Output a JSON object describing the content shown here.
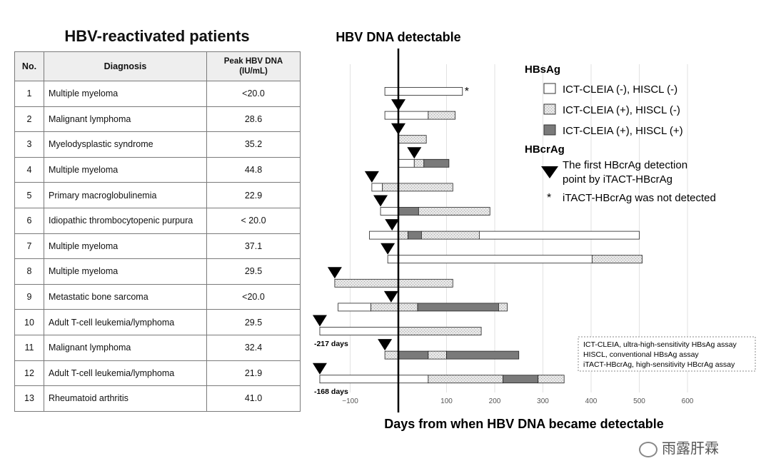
{
  "table": {
    "title": "HBV-reactivated patients",
    "headers": {
      "no": "No.",
      "diagnosis": "Diagnosis",
      "peak_line1": "Peak HBV DNA",
      "peak_line2": "(IU/mL)"
    },
    "rows": [
      {
        "no": "1",
        "diagnosis": "Multiple myeloma",
        "peak": "<20.0"
      },
      {
        "no": "2",
        "diagnosis": "Malignant lymphoma",
        "peak": "28.6"
      },
      {
        "no": "3",
        "diagnosis": "Myelodysplastic syndrome",
        "peak": "35.2"
      },
      {
        "no": "4",
        "diagnosis": "Multiple myeloma",
        "peak": "44.8"
      },
      {
        "no": "5",
        "diagnosis": "Primary macroglobulinemia",
        "peak": "22.9"
      },
      {
        "no": "6",
        "diagnosis": "Idiopathic thrombocytopenic purpura",
        "peak": "< 20.0"
      },
      {
        "no": "7",
        "diagnosis": "Multiple myeloma",
        "peak": "37.1"
      },
      {
        "no": "8",
        "diagnosis": "Multiple myeloma",
        "peak": "29.5"
      },
      {
        "no": "9",
        "diagnosis": "Metastatic bone sarcoma",
        "peak": "<20.0"
      },
      {
        "no": "10",
        "diagnosis": "Adult T-cell leukemia/lymphoma",
        "peak": "29.5"
      },
      {
        "no": "11",
        "diagnosis": "Malignant lymphoma",
        "peak": "32.4"
      },
      {
        "no": "12",
        "diagnosis": "Adult T-cell leukemia/lymphoma",
        "peak": "21.9"
      },
      {
        "no": "13",
        "diagnosis": "Rheumatoid arthritis",
        "peak": "41.0"
      }
    ]
  },
  "chart_data": {
    "type": "bar",
    "title": "HBV DNA detectable",
    "xlabel": "Days from when HBV DNA became detectable",
    "xlim": [
      -170,
      600
    ],
    "xticks": [
      -100,
      100,
      200,
      300,
      400,
      500,
      600
    ],
    "tick_labels": [
      "−100",
      "100",
      "200",
      "300",
      "400",
      "500",
      "600"
    ],
    "zero_line": 0,
    "legend": {
      "hbsag_title": "HBsAg",
      "neg": "ICT-CLEIA (-), HISCL (-)",
      "mid": "ICT-CLEIA (+), HISCL (-)",
      "pos": "ICT-CLEIA (+), HISCL (+)",
      "hbcrag_title": "HBcrAg",
      "triangle_line1": "The first HBcrAg detection",
      "triangle_line2": "point by iTACT-HBcrAg",
      "star_symbol": "*",
      "star_text": "iTACT-HBcrAg was not detected"
    },
    "note": [
      "ICT-CLEIA, ultra-high-sensitivity HBsAg assay",
      "HISCL, conventional HBsAg assay",
      "iTACT-HBcrAg, high-sensitivity HBcrAg assay"
    ],
    "colors": {
      "neg": "#ffffff",
      "mid": "#e3e3e3",
      "pos": "#7a7a7a",
      "outline": "#222222"
    },
    "patients": [
      {
        "no": 1,
        "segments": [
          {
            "from": -28,
            "to": 133,
            "state": "neg"
          }
        ],
        "hbcrag": null,
        "not_detected": true
      },
      {
        "no": 2,
        "segments": [
          {
            "from": -28,
            "to": 62,
            "state": "neg"
          },
          {
            "from": 62,
            "to": 118,
            "state": "mid"
          }
        ],
        "hbcrag": 0,
        "not_detected": false
      },
      {
        "no": 3,
        "segments": [
          {
            "from": 0,
            "to": 58,
            "state": "mid"
          }
        ],
        "hbcrag": 0,
        "not_detected": false
      },
      {
        "no": 4,
        "segments": [
          {
            "from": 0,
            "to": 33,
            "state": "neg"
          },
          {
            "from": 33,
            "to": 53,
            "state": "mid"
          },
          {
            "from": 53,
            "to": 105,
            "state": "pos"
          }
        ],
        "hbcrag": 33,
        "not_detected": false
      },
      {
        "no": 5,
        "segments": [
          {
            "from": -55,
            "to": -33,
            "state": "neg"
          },
          {
            "from": -33,
            "to": 113,
            "state": "mid"
          }
        ],
        "hbcrag": -55,
        "not_detected": false
      },
      {
        "no": 6,
        "segments": [
          {
            "from": -37,
            "to": 0,
            "state": "neg"
          },
          {
            "from": 0,
            "to": 42,
            "state": "pos"
          },
          {
            "from": 42,
            "to": 190,
            "state": "mid"
          }
        ],
        "hbcrag": -37,
        "not_detected": false
      },
      {
        "no": 7,
        "segments": [
          {
            "from": -60,
            "to": 0,
            "state": "neg"
          },
          {
            "from": 0,
            "to": 20,
            "state": "mid"
          },
          {
            "from": 20,
            "to": 48,
            "state": "pos"
          },
          {
            "from": 48,
            "to": 168,
            "state": "mid"
          },
          {
            "from": 168,
            "to": 500,
            "state": "neg"
          }
        ],
        "hbcrag": -13,
        "not_detected": false
      },
      {
        "no": 8,
        "segments": [
          {
            "from": -22,
            "to": 402,
            "state": "neg"
          },
          {
            "from": 402,
            "to": 506,
            "state": "mid"
          }
        ],
        "hbcrag": -22,
        "not_detected": false
      },
      {
        "no": 9,
        "segments": [
          {
            "from": -132,
            "to": 113,
            "state": "mid"
          }
        ],
        "hbcrag": -132,
        "not_detected": false
      },
      {
        "no": 10,
        "segments": [
          {
            "from": -125,
            "to": -57,
            "state": "neg"
          },
          {
            "from": -57,
            "to": 40,
            "state": "mid"
          },
          {
            "from": 40,
            "to": 208,
            "state": "pos"
          },
          {
            "from": 208,
            "to": 226,
            "state": "mid"
          }
        ],
        "hbcrag": -15,
        "not_detected": false
      },
      {
        "no": 11,
        "segments": [
          {
            "from": -163,
            "to": 0,
            "state": "neg"
          },
          {
            "from": 0,
            "to": 172,
            "state": "mid"
          }
        ],
        "hbcrag": -163,
        "not_detected": false,
        "offset_label": "-217 days"
      },
      {
        "no": 12,
        "segments": [
          {
            "from": -28,
            "to": 0,
            "state": "mid"
          },
          {
            "from": 0,
            "to": 62,
            "state": "pos"
          },
          {
            "from": 62,
            "to": 100,
            "state": "mid"
          },
          {
            "from": 100,
            "to": 250,
            "state": "pos"
          }
        ],
        "hbcrag": -28,
        "not_detected": false
      },
      {
        "no": 13,
        "segments": [
          {
            "from": -163,
            "to": 62,
            "state": "neg"
          },
          {
            "from": 62,
            "to": 217,
            "state": "mid"
          },
          {
            "from": 217,
            "to": 290,
            "state": "pos"
          },
          {
            "from": 290,
            "to": 344,
            "state": "mid"
          }
        ],
        "hbcrag": -163,
        "not_detected": false,
        "offset_label": "-168 days"
      }
    ]
  },
  "watermark": {
    "text": "雨露肝霖"
  }
}
